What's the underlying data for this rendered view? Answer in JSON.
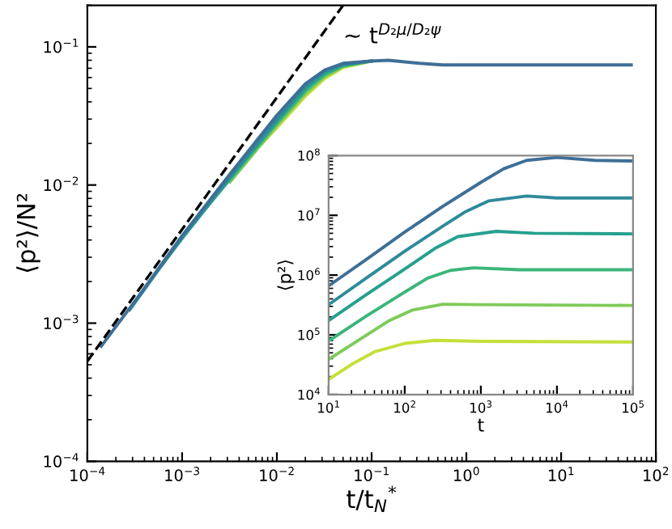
{
  "chart_data": [
    {
      "type": "line",
      "xlabel": "t/t$_{N}$$^{*}$",
      "ylabel": "⟨p²⟩/N²",
      "log": "xy",
      "xlim": [
        0.0001,
        100
      ],
      "ylim": [
        0.0001,
        0.2
      ],
      "xticks": [
        {
          "value": 0.0001,
          "label": "10$^{−4}$"
        },
        {
          "value": 0.001,
          "label": "10$^{−3}$"
        },
        {
          "value": 0.01,
          "label": "10$^{−2}$"
        },
        {
          "value": 0.1,
          "label": "10$^{−1}$"
        },
        {
          "value": 1,
          "label": "10$^{0}$"
        },
        {
          "value": 10,
          "label": "10$^{1}$"
        },
        {
          "value": 100,
          "label": "10$^{2}$"
        }
      ],
      "yticks": [
        {
          "value": 0.0001,
          "label": "10$^{−4}$"
        },
        {
          "value": 0.001,
          "label": "10$^{−3}$"
        },
        {
          "value": 0.01,
          "label": "10$^{−2}$"
        },
        {
          "value": 0.1,
          "label": "10$^{−1}$"
        }
      ],
      "annotations": [
        "∼ t$^{D₂μ/D₂ψ}$"
      ],
      "series": [
        {
          "color": "#c6df3a",
          "x": [
            0.007,
            0.01,
            0.02,
            0.032,
            0.05,
            0.1
          ],
          "values": [
            0.02,
            0.026,
            0.044,
            0.059,
            0.071,
            0.079
          ]
        },
        {
          "color": "#7ecb5a",
          "x": [
            0.0032,
            0.01,
            0.02,
            0.032,
            0.05,
            0.1
          ],
          "values": [
            0.0105,
            0.027,
            0.046,
            0.061,
            0.072,
            0.079
          ]
        },
        {
          "color": "#3bb67a",
          "x": [
            0.0014,
            0.0032,
            0.01,
            0.02,
            0.032,
            0.05,
            0.1
          ],
          "values": [
            0.0056,
            0.011,
            0.028,
            0.048,
            0.063,
            0.073,
            0.079
          ]
        },
        {
          "color": "#26a08f",
          "x": [
            0.00063,
            0.001,
            0.0032,
            0.01,
            0.02,
            0.032,
            0.05,
            0.1
          ],
          "values": [
            0.0027,
            0.0041,
            0.0112,
            0.029,
            0.05,
            0.065,
            0.074,
            0.079
          ]
        },
        {
          "color": "#2e8a9a",
          "x": [
            0.00028,
            0.001,
            0.0032,
            0.01,
            0.02,
            0.032,
            0.05,
            0.1
          ],
          "values": [
            0.00125,
            0.0042,
            0.0115,
            0.03,
            0.052,
            0.067,
            0.075,
            0.079
          ]
        },
        {
          "color": "#3e6f96",
          "x": [
            0.00014,
            0.00032,
            0.001,
            0.0032,
            0.01,
            0.02,
            0.032,
            0.05,
            0.1,
            0.15,
            0.32,
            0.56,
            3.2,
            55
          ],
          "values": [
            0.00068,
            0.00145,
            0.0043,
            0.012,
            0.032,
            0.054,
            0.068,
            0.076,
            0.079,
            0.08,
            0.076,
            0.074,
            0.074,
            0.074
          ]
        },
        {
          "color": "#000000",
          "line_style": "dashed",
          "x": [
            0.0001,
            0.05
          ],
          "values": [
            0.00053,
            0.2
          ]
        }
      ]
    },
    {
      "type": "line",
      "xlabel": "t",
      "ylabel": "⟨p²⟩",
      "log": "xy",
      "xlim": [
        10,
        100000
      ],
      "ylim": [
        10000,
        100000000
      ],
      "xticks": [
        {
          "value": 10,
          "label": "10$^{1}$"
        },
        {
          "value": 100,
          "label": "10$^{2}$"
        },
        {
          "value": 1000,
          "label": "10$^{3}$"
        },
        {
          "value": 10000,
          "label": "10$^{4}$"
        },
        {
          "value": 100000,
          "label": "10$^{5}$"
        }
      ],
      "yticks": [
        {
          "value": 10000,
          "label": "10$^{4}$"
        },
        {
          "value": 100000,
          "label": "10$^{5}$"
        },
        {
          "value": 1000000,
          "label": "10$^{6}$"
        },
        {
          "value": 10000000,
          "label": "10$^{7}$"
        },
        {
          "value": 100000000,
          "label": "10$^{8}$"
        }
      ],
      "series": [
        {
          "color": "#3e6f96",
          "x": [
            10,
            32,
            100,
            316,
            1000,
            2000,
            4000,
            10000,
            31600,
            100000
          ],
          "values": [
            660000,
            1860000,
            5250000,
            14100000,
            35500000,
            60000000,
            83000000,
            93000000,
            83000000,
            81000000
          ]
        },
        {
          "color": "#2e8a9a",
          "x": [
            10,
            32,
            100,
            316,
            630,
            1260,
            4000,
            10000,
            100000
          ],
          "values": [
            320000,
            910000,
            2500000,
            6600000,
            11500000,
            17400000,
            21000000,
            19500000,
            19500000
          ]
        },
        {
          "color": "#26a08f",
          "x": [
            10,
            32,
            100,
            250,
            500,
            1600,
            5000,
            100000
          ],
          "values": [
            174000,
            480000,
            1260000,
            2800000,
            4400000,
            5400000,
            5000000,
            4900000
          ]
        },
        {
          "color": "#3bb67a",
          "x": [
            10,
            32,
            100,
            200,
            400,
            800,
            3200,
            100000
          ],
          "values": [
            79000,
            210000,
            520000,
            890000,
            1200000,
            1320000,
            1230000,
            1230000
          ]
        },
        {
          "color": "#7ecb5a",
          "x": [
            10,
            32,
            63,
            126,
            316,
            1000,
            100000
          ],
          "values": [
            39000,
            100000,
            174000,
            260000,
            325000,
            320000,
            310000
          ]
        },
        {
          "color": "#c6df3a",
          "x": [
            10,
            20,
            40,
            100,
            250,
            1000,
            100000
          ],
          "values": [
            18000,
            32000,
            52000,
            72000,
            81000,
            78000,
            76000
          ]
        }
      ]
    }
  ]
}
